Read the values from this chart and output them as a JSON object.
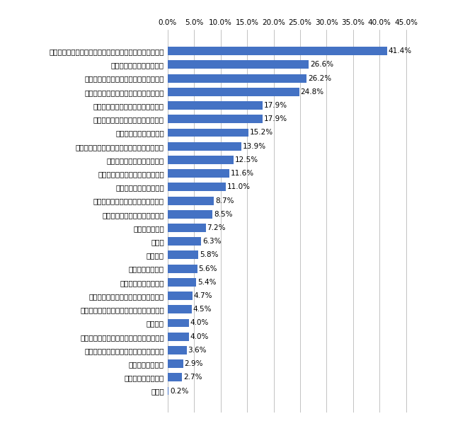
{
  "categories": [
    "中長期的な成長戦略をたて、「強い経済」を実現すること",
    "デフレ経済を立て直すこと",
    "財政再建への取り組みを本格化すること",
    "持続可能な社会保障制度を確立すること",
    "冷え込んだ日米関係を立て直すこと",
    "東日本大震災の復興への迅速な対応",
    "特に期待したものはない",
    "中国との首脳会談の再開など関係改善の動き",
    "消費税の増税を断行すること",
    "急激な円高に迅速に対応すること",
    "東シナ海周辺の危機管理",
    "行政のムダを徹底的に削減すること",
    "国民に向かい合った政治の実現",
    "ＴＰＰへの参加",
    "その他",
    "憲法改正",
    "韓国との関係改善",
    "原子力発電所の再稼働",
    "集団的自衛権の行使を可能とすること",
    "普天間飛行場移設問題に決着をつけること",
    "教育問題",
    "除染作業の迅速化による被災者の早期帰還",
    "北朝鮮の核問題、拉致問題に関する対応",
    "日本の農業の復興",
    "強い政党政治の復活",
    "無回答"
  ],
  "values": [
    41.4,
    26.6,
    26.2,
    24.8,
    17.9,
    17.9,
    15.2,
    13.9,
    12.5,
    11.6,
    11.0,
    8.7,
    8.5,
    7.2,
    6.3,
    5.8,
    5.6,
    5.4,
    4.7,
    4.5,
    4.0,
    4.0,
    3.6,
    2.9,
    2.7,
    0.2
  ],
  "bar_color": "#4472C4",
  "background_color": "#FFFFFF",
  "text_color": "#000000",
  "label_fontsize": 7.5,
  "value_fontsize": 7.5,
  "xlim": [
    0,
    47
  ],
  "xtick_max": 45.0,
  "xticks": [
    0.0,
    5.0,
    10.0,
    15.0,
    20.0,
    25.0,
    30.0,
    35.0,
    40.0,
    45.0
  ],
  "grid_color": "#AAAAAA",
  "bar_height": 0.62
}
